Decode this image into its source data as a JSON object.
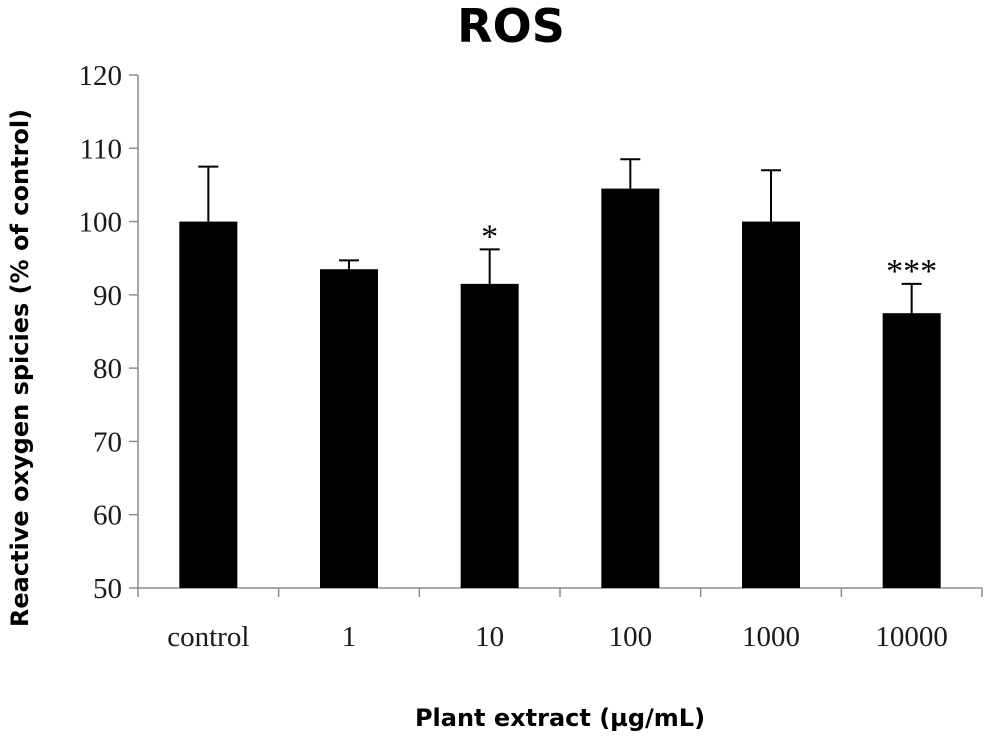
{
  "chart_data": {
    "type": "bar",
    "title": "ROS",
    "xlabel": "Plant extract (µg/mL)",
    "ylabel": "Reactive oxygen spicies (% of control)",
    "categories": [
      "control",
      "1",
      "10",
      "100",
      "1000",
      "10000"
    ],
    "values": [
      100,
      93.5,
      91.5,
      104.5,
      100,
      87.5
    ],
    "error_plus": [
      7.5,
      1.2,
      4.7,
      4.0,
      7.0,
      4.0
    ],
    "significance": [
      "",
      "",
      "*",
      "",
      "",
      "***"
    ],
    "ylim": [
      50,
      120
    ],
    "yticks": [
      50,
      60,
      70,
      80,
      90,
      100,
      110,
      120
    ],
    "grid": false,
    "legend": "none",
    "bar_color": "#000000"
  }
}
